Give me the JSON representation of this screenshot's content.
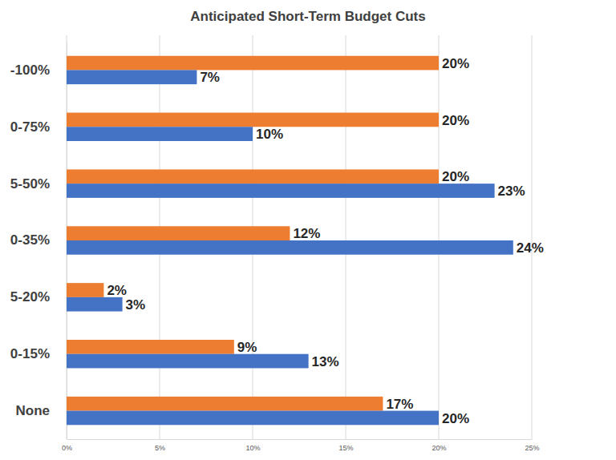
{
  "chart_data": {
    "type": "bar",
    "title": "Anticipated Short-Term Budget Cuts",
    "orientation": "horizontal",
    "categories": [
      "-100%",
      "0-75%",
      "5-50%",
      "0-35%",
      "5-20%",
      "0-15%",
      "None"
    ],
    "series": [
      {
        "color": "#ed7d31",
        "values": [
          20,
          20,
          20,
          12,
          2,
          9,
          17
        ],
        "value_labels": [
          "20%",
          "20%",
          "20%",
          "12%",
          "2%",
          "9%",
          "17%"
        ]
      },
      {
        "color": "#4472c4",
        "values": [
          7,
          10,
          23,
          24,
          3,
          13,
          20
        ],
        "value_labels": [
          "7%",
          "10%",
          "23%",
          "24%",
          "3%",
          "13%",
          "20%"
        ]
      }
    ],
    "xlim": [
      0,
      25
    ],
    "xticks": [
      {
        "value": 0,
        "label": "0%"
      },
      {
        "value": 5,
        "label": "5%"
      },
      {
        "value": 10,
        "label": "10%"
      },
      {
        "value": 15,
        "label": "15%"
      },
      {
        "value": 20,
        "label": "20%"
      },
      {
        "value": 25,
        "label": "25%"
      }
    ],
    "grid": true,
    "data_labels": true
  }
}
